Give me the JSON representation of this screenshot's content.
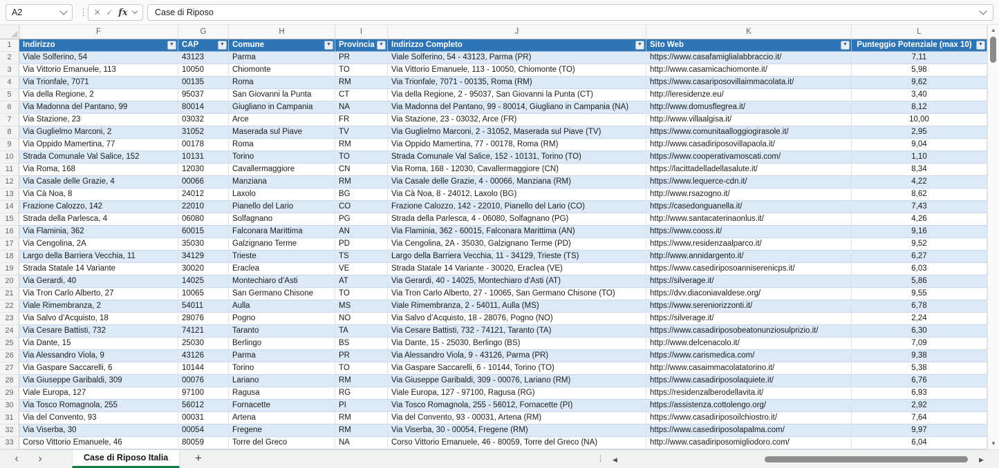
{
  "formula_bar": {
    "name_box": "A2",
    "value": "Case di Riposo"
  },
  "icons": {
    "dots": "⋮",
    "cancel": "✕",
    "check": "✓",
    "fx": "fx",
    "filter": "▼",
    "up": "▲",
    "down": "▼",
    "left": "◀",
    "right": "▶",
    "prev": "‹",
    "next": "›",
    "plus": "+"
  },
  "colors": {
    "header_bg": "#2E75B6",
    "header_text": "#FFFFFF",
    "band_fill": "#DCE9F7",
    "tab_accent": "#107C41"
  },
  "grid": {
    "column_letters": [
      "F",
      "G",
      "H",
      "I",
      "J",
      "K",
      "L"
    ],
    "header_row_number": "1",
    "headers": [
      "Indirizzo",
      "CAP",
      "Comune",
      "Provincia",
      "Indirizzo Completo",
      "Sito Web",
      "Punteggio Potenziale (max 10)"
    ],
    "rows": [
      {
        "n": "2",
        "cells": [
          "Viale Solferino, 54",
          "43123",
          "Parma",
          "PR",
          "Viale Solferino, 54 - 43123, Parma (PR)",
          "https://www.casafamiglialabbraccio.it/",
          "7,11"
        ]
      },
      {
        "n": "3",
        "cells": [
          "Via Vittorio Emanuele, 113",
          "10050",
          "Chiomonte",
          "TO",
          "Via Vittorio Emanuele, 113 - 10050, Chiomonte (TO)",
          "http://www.casamicachiomonte.it/",
          "5,98"
        ]
      },
      {
        "n": "4",
        "cells": [
          "Via Trionfale, 7071",
          "00135",
          "Roma",
          "RM",
          "Via Trionfale, 7071 - 00135, Roma (RM)",
          "https://www.casariposovillaimmacolata.it/",
          "9,62"
        ]
      },
      {
        "n": "5",
        "cells": [
          "Via della Regione, 2",
          "95037",
          "San Giovanni la Punta",
          "CT",
          "Via della Regione, 2 - 95037, San Giovanni la Punta (CT)",
          "http://leresidenze.eu/",
          "3,40"
        ]
      },
      {
        "n": "6",
        "cells": [
          "Via Madonna del Pantano, 99",
          "80014",
          "Giugliano in Campania",
          "NA",
          "Via Madonna del Pantano, 99 - 80014, Giugliano in Campania (NA)",
          "http://www.domusflegrea.it/",
          "8,12"
        ]
      },
      {
        "n": "7",
        "cells": [
          "Via Stazione, 23",
          "03032",
          "Arce",
          "FR",
          "Via Stazione, 23 - 03032, Arce (FR)",
          "http://www.villaalgisa.it/",
          "10,00"
        ]
      },
      {
        "n": "8",
        "cells": [
          "Via Guglielmo Marconi, 2",
          "31052",
          "Maserada sul Piave",
          "TV",
          "Via Guglielmo Marconi, 2 - 31052, Maserada sul Piave (TV)",
          "https://www.comunitaalloggiogirasole.it/",
          "2,95"
        ]
      },
      {
        "n": "9",
        "cells": [
          "Via Oppido Mamertina, 77",
          "00178",
          "Roma",
          "RM",
          "Via Oppido Mamertina, 77 - 00178, Roma (RM)",
          "http://www.casadiriposovillapaola.it/",
          "9,04"
        ]
      },
      {
        "n": "10",
        "cells": [
          "Strada Comunale Val Salice, 152",
          "10131",
          "Torino",
          "TO",
          "Strada Comunale Val Salice, 152 - 10131, Torino (TO)",
          "https://www.cooperativamoscati.com/",
          "1,10"
        ]
      },
      {
        "n": "11",
        "cells": [
          "Via Roma, 168",
          "12030",
          "Cavallermaggiore",
          "CN",
          "Via Roma, 168 - 12030, Cavallermaggiore (CN)",
          "https://lacittadelladellasalute.it/",
          "8,34"
        ]
      },
      {
        "n": "12",
        "cells": [
          "Via Casale delle Grazie, 4",
          "00066",
          "Manziana",
          "RM",
          "Via Casale delle Grazie, 4 - 00066, Manziana (RM)",
          "https://www.lequerce-cdn.it/",
          "4,22"
        ]
      },
      {
        "n": "13",
        "cells": [
          "Via Cà Noa, 8",
          "24012",
          "Laxolo",
          "BG",
          "Via Cà Noa, 8 - 24012, Laxolo (BG)",
          "http://www.rsazogno.it/",
          "8,62"
        ]
      },
      {
        "n": "14",
        "cells": [
          "Frazione Calozzo, 142",
          "22010",
          "Pianello del Lario",
          "CO",
          "Frazione Calozzo, 142 - 22010, Pianello del Lario (CO)",
          "https://casedonguanella.it/",
          "7,43"
        ]
      },
      {
        "n": "15",
        "cells": [
          "Strada della Parlesca, 4",
          "06080",
          "Solfagnano",
          "PG",
          "Strada della Parlesca, 4 - 06080, Solfagnano (PG)",
          "http://www.santacaterinaonlus.it/",
          "4,26"
        ]
      },
      {
        "n": "16",
        "cells": [
          "Via Flaminia, 362",
          "60015",
          "Falconara Marittima",
          "AN",
          "Via Flaminia, 362 - 60015, Falconara Marittima (AN)",
          "https://www.cooss.it/",
          "9,16"
        ]
      },
      {
        "n": "17",
        "cells": [
          "Via Cengolina, 2A",
          "35030",
          "Galzignano Terme",
          "PD",
          "Via Cengolina, 2A - 35030, Galzignano Terme (PD)",
          "https://www.residenzaalparco.it/",
          "9,52"
        ]
      },
      {
        "n": "18",
        "cells": [
          "Largo della Barriera Vecchia, 11",
          "34129",
          "Trieste",
          "TS",
          "Largo della Barriera Vecchia, 11 - 34129, Trieste (TS)",
          "http://www.annidargento.it/",
          "6,27"
        ]
      },
      {
        "n": "19",
        "cells": [
          "Strada Statale 14 Variante",
          "30020",
          "Eraclea",
          "VE",
          "Strada Statale 14 Variante - 30020, Eraclea (VE)",
          "https://www.casediriposoanniserenicps.it/",
          "6,03"
        ]
      },
      {
        "n": "20",
        "cells": [
          "Via Gerardi, 40",
          "14025",
          "Montechiaro d’Asti",
          "AT",
          "Via Gerardi, 40 - 14025, Montechiaro d’Asti (AT)",
          "https://silverage.it/",
          "5,86"
        ]
      },
      {
        "n": "21",
        "cells": [
          "Via Tron Carlo Alberto, 27",
          "10065",
          "San Germano Chisone",
          "TO",
          "Via Tron Carlo Alberto, 27 - 10065, San Germano Chisone (TO)",
          "https://dvv.diaconiavaldese.org/",
          "9,55"
        ]
      },
      {
        "n": "22",
        "cells": [
          "Viale Rimembranza, 2",
          "54011",
          "Aulla",
          "MS",
          "Viale Rimembranza, 2 - 54011, Aulla (MS)",
          "https://www.sereniorizzonti.it/",
          "6,78"
        ]
      },
      {
        "n": "23",
        "cells": [
          "Via Salvo d’Acquisto, 18",
          "28076",
          "Pogno",
          "NO",
          "Via Salvo d’Acquisto, 18 - 28076, Pogno (NO)",
          "https://silverage.it/",
          "2,24"
        ]
      },
      {
        "n": "24",
        "cells": [
          "Via Cesare Battisti, 732",
          "74121",
          "Taranto",
          "TA",
          "Via Cesare Battisti, 732 - 74121, Taranto (TA)",
          "https://www.casadiriposobeatonunziosulprizio.it/",
          "6,30"
        ]
      },
      {
        "n": "25",
        "cells": [
          "Via Dante, 15",
          "25030",
          "Berlingo",
          "BS",
          "Via Dante, 15 - 25030, Berlingo (BS)",
          "http://www.delcenacolo.it/",
          "7,09"
        ]
      },
      {
        "n": "26",
        "cells": [
          "Via Alessandro Viola, 9",
          "43126",
          "Parma",
          "PR",
          "Via Alessandro Viola, 9 - 43126, Parma (PR)",
          "https://www.carismedica.com/",
          "9,38"
        ]
      },
      {
        "n": "27",
        "cells": [
          "Via Gaspare Saccarelli, 6",
          "10144",
          "Torino",
          "TO",
          "Via Gaspare Saccarelli, 6 - 10144, Torino (TO)",
          "http://www.casaimmacolatatorino.it/",
          "5,38"
        ]
      },
      {
        "n": "28",
        "cells": [
          "Via Giuseppe Garibaldi, 309",
          "00076",
          "Lariano",
          "RM",
          "Via Giuseppe Garibaldi, 309 - 00076, Lariano (RM)",
          "https://www.casadiriposolaquiete.it/",
          "6,76"
        ]
      },
      {
        "n": "29",
        "cells": [
          "Viale Europa, 127",
          "97100",
          "Ragusa",
          "RG",
          "Viale Europa, 127 - 97100, Ragusa (RG)",
          "https://residenzalberodellavita.it/",
          "6,93"
        ]
      },
      {
        "n": "30",
        "cells": [
          "Via Tosco Romagnola, 255",
          "56012",
          "Fornacette",
          "PI",
          "Via Tosco Romagnola, 255 - 56012, Fornacette (PI)",
          "https://assistenza.cottolengo.org/",
          "2,92"
        ]
      },
      {
        "n": "31",
        "cells": [
          "Via del Convento, 93",
          "00031",
          "Artena",
          "RM",
          "Via del Convento, 93 - 00031, Artena (RM)",
          "https://www.casadiriposoilchiostro.it/",
          "7,64"
        ]
      },
      {
        "n": "32",
        "cells": [
          "Via Viserba, 30",
          "00054",
          "Fregene",
          "RM",
          "Via Viserba, 30 - 00054, Fregene (RM)",
          "https://www.casediriposolapalma.com/",
          "9,97"
        ]
      },
      {
        "n": "33",
        "cells": [
          "Corso Vittorio Emanuele, 46",
          "80059",
          "Torre del Greco",
          "NA",
          "Corso Vittorio Emanuele, 46 - 80059, Torre del Greco (NA)",
          "http://www.casadiriposomigliodoro.com/",
          "6,04"
        ]
      }
    ]
  },
  "sheet_tabs": {
    "active": "Case di Riposo Italia"
  }
}
